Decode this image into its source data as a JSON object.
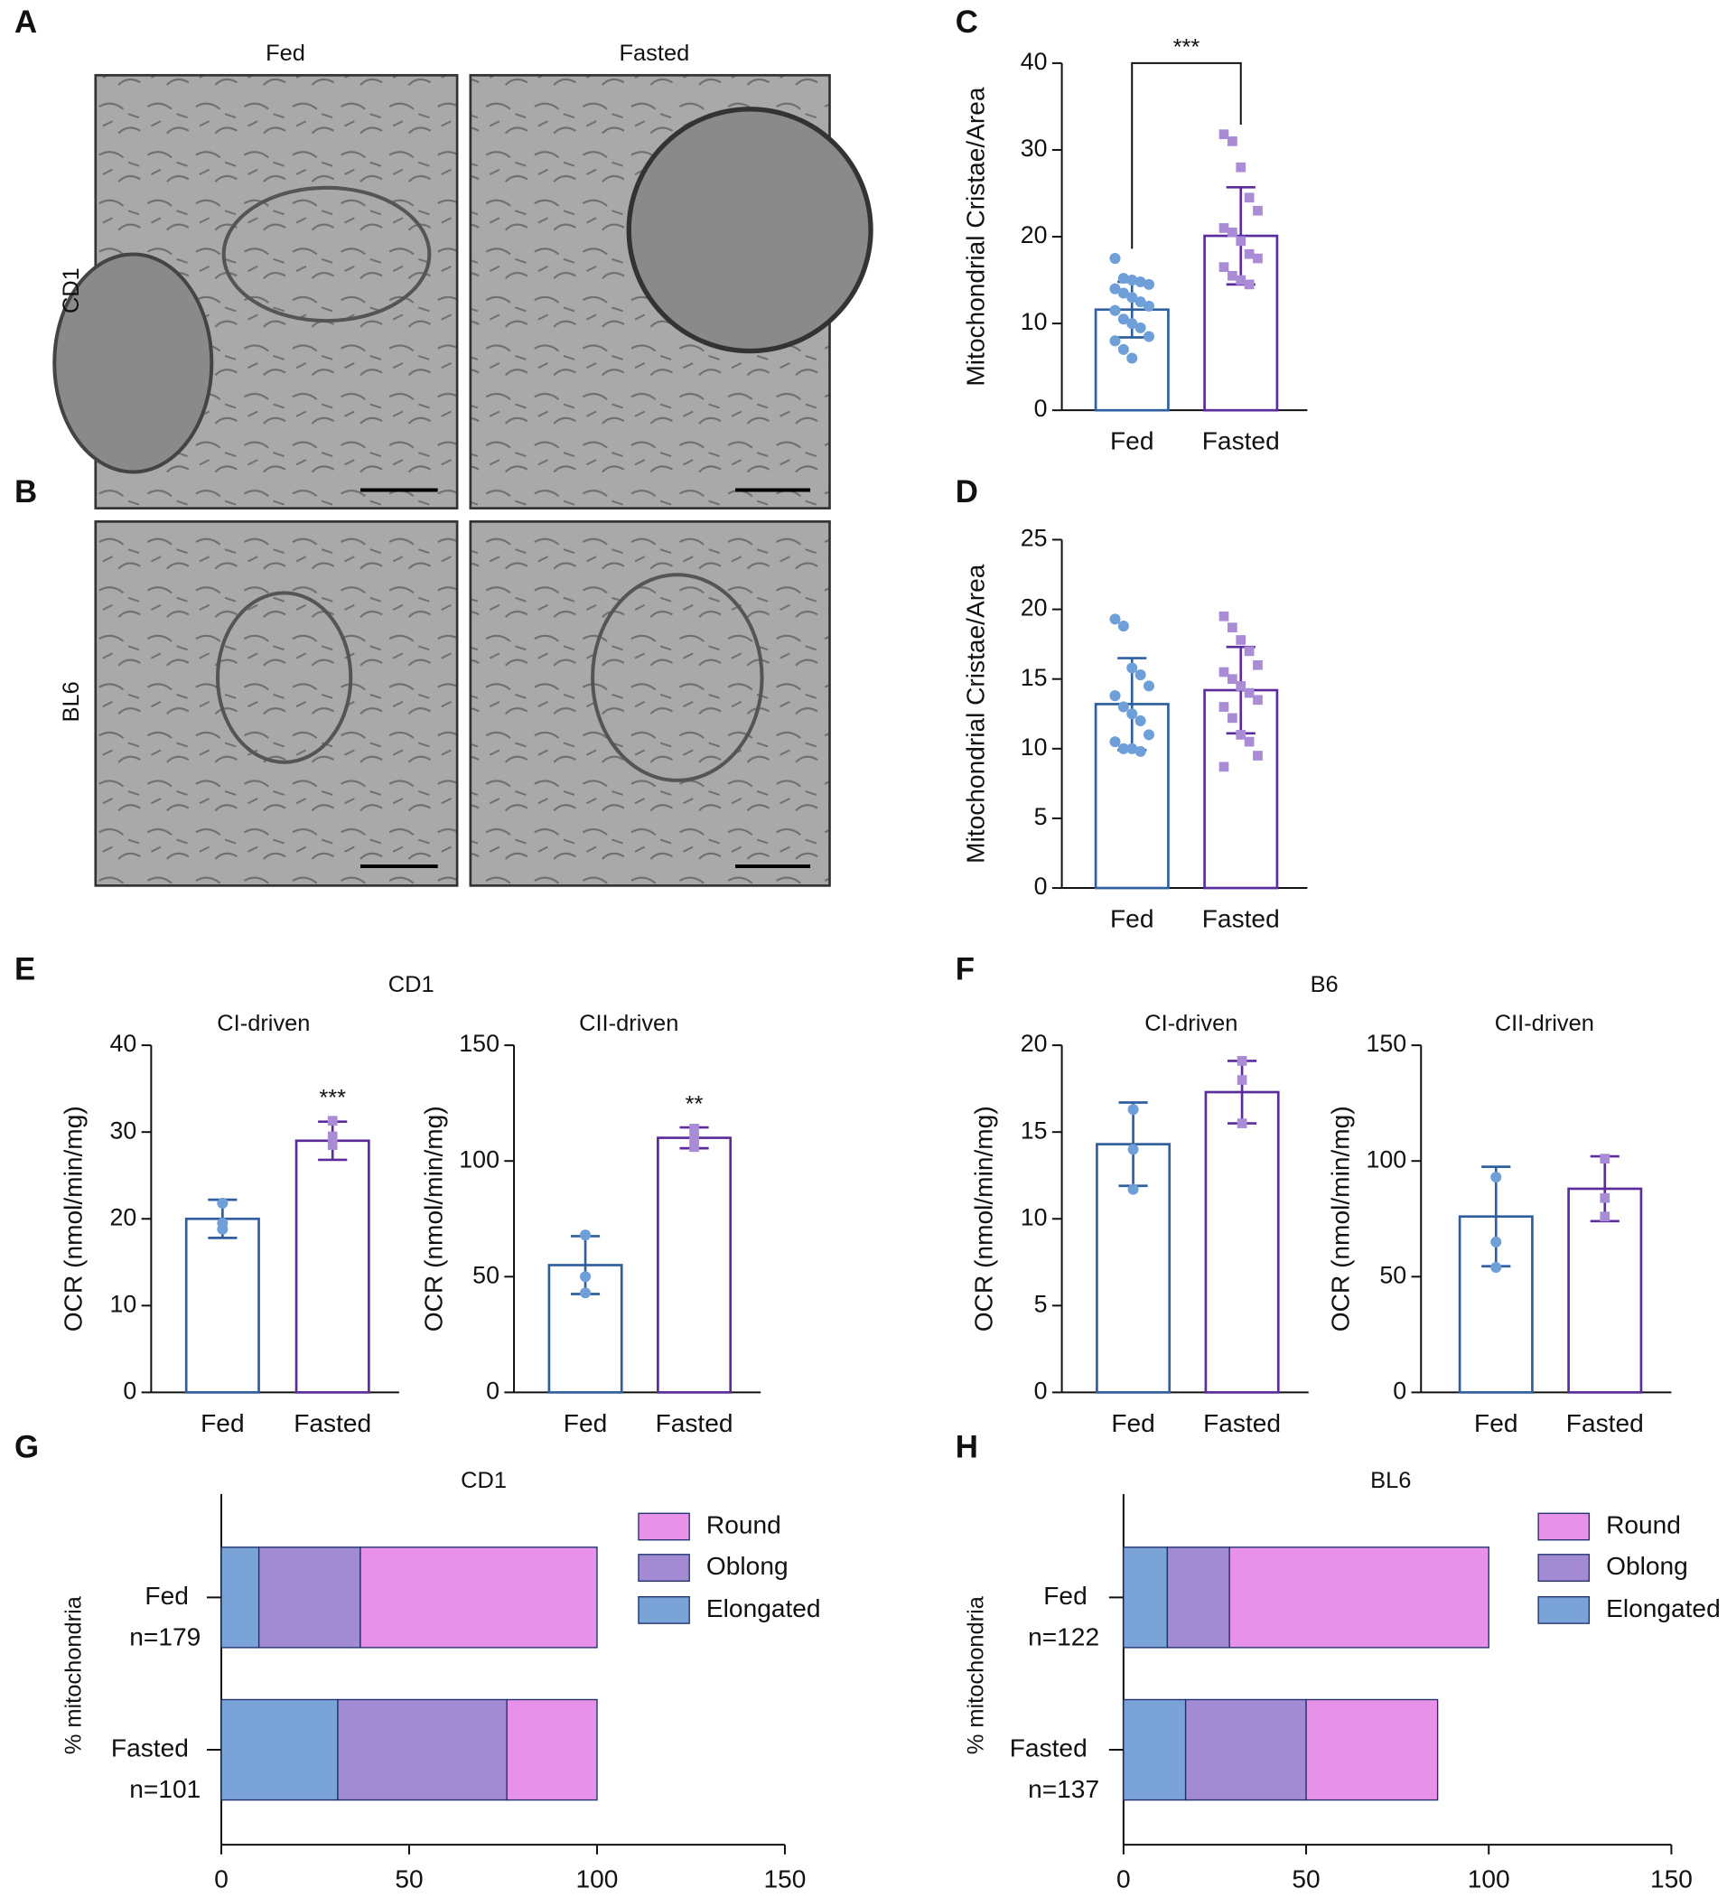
{
  "micrographs": {
    "panel_labels": [
      "A",
      "B"
    ],
    "columns": [
      "Fed",
      "Fasted"
    ],
    "rows": [
      "CD1",
      "BL6"
    ]
  },
  "chart_data": [
    {
      "type": "bar",
      "panel_label": "C",
      "categories": [
        "Fed",
        "Fasted"
      ],
      "values": [
        11.6,
        20.1
      ],
      "errors": [
        3.2,
        5.6
      ],
      "points": [
        [
          17.5,
          15.2,
          15,
          14.8,
          14.5,
          14,
          13.5,
          13,
          12.5,
          12,
          11.5,
          10.5,
          10,
          9.5,
          8.5,
          8,
          7,
          6
        ],
        [
          31.8,
          31,
          28,
          24.5,
          23,
          21,
          20.5,
          19.5,
          18,
          17.5,
          16.5,
          15.5,
          15,
          14.5
        ]
      ],
      "colors": [
        "#2f5f9e",
        "#5b2d9c"
      ],
      "point_colors": [
        "#6f9fd8",
        "#a98bd6"
      ],
      "point_shapes": [
        "circle",
        "square"
      ],
      "ylabel": "Mitochondrial Cristae/Area",
      "ylim": [
        0,
        40
      ],
      "yticks": [
        0,
        10,
        20,
        30,
        40
      ],
      "significance": {
        "text": "***",
        "bracket": true
      }
    },
    {
      "type": "bar",
      "panel_label": "D",
      "categories": [
        "Fed",
        "Fasted"
      ],
      "values": [
        13.2,
        14.2
      ],
      "errors": [
        3.3,
        3.1
      ],
      "points": [
        [
          19.3,
          18.8,
          15.8,
          15.3,
          14.5,
          13.8,
          13,
          12.5,
          12,
          11,
          10.5,
          10,
          10,
          9.8
        ],
        [
          19.5,
          18.7,
          17.8,
          17,
          16,
          15.5,
          15,
          14.5,
          14,
          13.5,
          13,
          12.2,
          11,
          10.5,
          9.5,
          8.7
        ]
      ],
      "colors": [
        "#2f5f9e",
        "#5b2d9c"
      ],
      "point_colors": [
        "#6f9fd8",
        "#a98bd6"
      ],
      "point_shapes": [
        "circle",
        "square"
      ],
      "ylabel": "Mitochondrial Cristae/Area",
      "ylim": [
        0,
        25
      ],
      "yticks": [
        0,
        5,
        10,
        15,
        20,
        25
      ]
    },
    {
      "type": "bar",
      "panel_label": "E",
      "group_title": "CD1",
      "title": "CI-driven",
      "categories": [
        "Fed",
        "Fasted"
      ],
      "values": [
        20,
        29
      ],
      "errors": [
        2.2,
        2.2
      ],
      "points": [
        [
          21.8,
          19.5,
          18.8
        ],
        [
          31.3,
          29.5,
          28.5
        ]
      ],
      "colors": [
        "#2f5f9e",
        "#5b2d9c"
      ],
      "point_colors": [
        "#6f9fd8",
        "#a98bd6"
      ],
      "point_shapes": [
        "circle",
        "square"
      ],
      "ylabel": "OCR (nmol/min/mg)",
      "ylim": [
        0,
        40
      ],
      "yticks": [
        0,
        10,
        20,
        30,
        40
      ],
      "significance": {
        "text": "***",
        "bracket": false
      }
    },
    {
      "type": "bar",
      "title": "CII-driven",
      "categories": [
        "Fed",
        "Fasted"
      ],
      "values": [
        55,
        110
      ],
      "errors": [
        12.5,
        4.5
      ],
      "points": [
        [
          68,
          50,
          43
        ],
        [
          114,
          110,
          106
        ]
      ],
      "colors": [
        "#2f5f9e",
        "#5b2d9c"
      ],
      "point_colors": [
        "#6f9fd8",
        "#a98bd6"
      ],
      "point_shapes": [
        "circle",
        "square"
      ],
      "ylabel": "OCR (nmol/min/mg)",
      "ylim": [
        0,
        150
      ],
      "yticks": [
        0,
        50,
        100,
        150
      ],
      "significance": {
        "text": "**",
        "bracket": false
      }
    },
    {
      "type": "bar",
      "panel_label": "F",
      "group_title": "B6",
      "title": "CI-driven",
      "categories": [
        "Fed",
        "Fasted"
      ],
      "values": [
        14.3,
        17.3
      ],
      "errors": [
        2.4,
        1.8
      ],
      "points": [
        [
          16.3,
          14,
          11.7
        ],
        [
          19.1,
          18,
          15.5
        ]
      ],
      "colors": [
        "#2f5f9e",
        "#5b2d9c"
      ],
      "point_colors": [
        "#6f9fd8",
        "#a98bd6"
      ],
      "point_shapes": [
        "circle",
        "square"
      ],
      "ylabel": "OCR (nmol/min/mg)",
      "ylim": [
        0,
        20
      ],
      "yticks": [
        0,
        5,
        10,
        15,
        20
      ]
    },
    {
      "type": "bar",
      "title": "CII-driven",
      "categories": [
        "Fed",
        "Fasted"
      ],
      "values": [
        76,
        88
      ],
      "errors": [
        21.5,
        14
      ],
      "points": [
        [
          93,
          65,
          54
        ],
        [
          101,
          84,
          76
        ]
      ],
      "colors": [
        "#2f5f9e",
        "#5b2d9c"
      ],
      "point_colors": [
        "#6f9fd8",
        "#a98bd6"
      ],
      "point_shapes": [
        "circle",
        "square"
      ],
      "ylabel": "OCR (nmol/min/mg)",
      "ylim": [
        0,
        150
      ],
      "yticks": [
        0,
        50,
        100,
        150
      ]
    },
    {
      "type": "hbar",
      "panel_label": "G",
      "title": "CD1",
      "categories": [
        "Fed",
        "Fasted"
      ],
      "n_labels": [
        "n=179",
        "n=101"
      ],
      "series": [
        {
          "name": "Elongated",
          "color": "#7aa3d8",
          "values": [
            10,
            31
          ]
        },
        {
          "name": "Oblong",
          "color": "#a38bd4",
          "values": [
            27,
            45
          ]
        },
        {
          "name": "Round",
          "color": "#e891e8",
          "values": [
            63,
            24
          ]
        }
      ],
      "ylabel": "% mitochondria",
      "xlim": [
        0,
        150
      ],
      "xticks": [
        0,
        50,
        100,
        150
      ]
    },
    {
      "type": "hbar",
      "panel_label": "H",
      "title": "BL6",
      "categories": [
        "Fed",
        "Fasted"
      ],
      "n_labels": [
        "n=122",
        "n=137"
      ],
      "series": [
        {
          "name": "Elongated",
          "color": "#7aa3d8",
          "values": [
            12,
            17
          ]
        },
        {
          "name": "Oblong",
          "color": "#a38bd4",
          "values": [
            17,
            33
          ]
        },
        {
          "name": "Round",
          "color": "#e891e8",
          "values": [
            71,
            36
          ]
        }
      ],
      "ylabel": "% mitochondria",
      "xlim": [
        0,
        150
      ],
      "xticks": [
        0,
        50,
        100,
        150
      ]
    }
  ]
}
